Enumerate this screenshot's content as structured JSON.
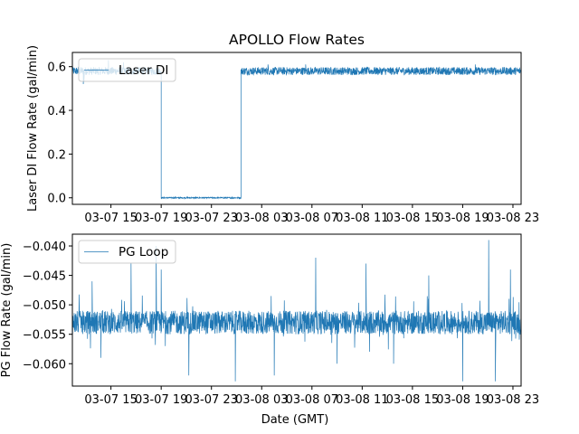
{
  "chart_data": [
    {
      "type": "line",
      "title": "APOLLO Flow Rates",
      "xlabel": "",
      "ylabel": "Laser DI Flow Rate (gal/min)",
      "x_unit": "hours since 03-07 00:00 GMT",
      "xlim": [
        11.93,
        47.65
      ],
      "ylim": [
        -0.03,
        0.665
      ],
      "xticks": [
        {
          "v": 15,
          "label": "03-07 15"
        },
        {
          "v": 19,
          "label": "03-07 19"
        },
        {
          "v": 23,
          "label": "03-07 23"
        },
        {
          "v": 27,
          "label": "03-08 03"
        },
        {
          "v": 31,
          "label": "03-08 07"
        },
        {
          "v": 35,
          "label": "03-08 11"
        },
        {
          "v": 39,
          "label": "03-08 15"
        },
        {
          "v": 43,
          "label": "03-08 19"
        },
        {
          "v": 47,
          "label": "03-08 23"
        }
      ],
      "yticks": [
        {
          "v": 0.0,
          "label": "0.0"
        },
        {
          "v": 0.2,
          "label": "0.2"
        },
        {
          "v": 0.4,
          "label": "0.4"
        },
        {
          "v": 0.6,
          "label": "0.6"
        }
      ],
      "legend": {
        "label": "Laser DI",
        "placement": "upper-left"
      },
      "series": [
        {
          "name": "Laser DI",
          "color": "#1f77b4",
          "segments": [
            {
              "start": 11.93,
              "end": 19.0,
              "mean": 0.58,
              "noise": 0.018
            },
            {
              "start": 19.0,
              "end": 25.35,
              "mean": 0.0,
              "noise": 0.003
            },
            {
              "start": 25.35,
              "end": 47.65,
              "mean": 0.58,
              "noise": 0.018
            }
          ],
          "spikes": [
            [
              12.8,
              0.52
            ],
            [
              12.85,
              0.53
            ],
            [
              14.8,
              0.63
            ],
            [
              16.0,
              0.62
            ],
            [
              30.5,
              0.61
            ],
            [
              27.5,
              0.61
            ],
            [
              44.0,
              0.61
            ]
          ]
        }
      ]
    },
    {
      "type": "line",
      "title": "",
      "xlabel": "Date (GMT)",
      "ylabel": "PG Flow Rate (gal/min)",
      "x_unit": "hours since 03-07 00:00 GMT",
      "xlim": [
        11.93,
        47.65
      ],
      "ylim": [
        -0.0638,
        -0.038
      ],
      "xticks": [
        {
          "v": 15,
          "label": "03-07 15"
        },
        {
          "v": 19,
          "label": "03-07 19"
        },
        {
          "v": 23,
          "label": "03-07 23"
        },
        {
          "v": 27,
          "label": "03-08 03"
        },
        {
          "v": 31,
          "label": "03-08 07"
        },
        {
          "v": 35,
          "label": "03-08 11"
        },
        {
          "v": 39,
          "label": "03-08 15"
        },
        {
          "v": 43,
          "label": "03-08 19"
        },
        {
          "v": 47,
          "label": "03-08 23"
        }
      ],
      "yticks": [
        {
          "v": -0.06,
          "label": "−0.060"
        },
        {
          "v": -0.055,
          "label": "−0.055"
        },
        {
          "v": -0.05,
          "label": "−0.050"
        },
        {
          "v": -0.045,
          "label": "−0.045"
        },
        {
          "v": -0.04,
          "label": "−0.040"
        }
      ],
      "legend": {
        "label": "PG Loop",
        "placement": "upper-left"
      },
      "series": [
        {
          "name": "PG Loop",
          "color": "#1f77b4",
          "segments": [
            {
              "start": 11.93,
              "end": 47.65,
              "mean": -0.053,
              "noise": 0.002
            }
          ],
          "spikes": [
            [
              16.6,
              -0.043
            ],
            [
              18.6,
              -0.04
            ],
            [
              19.0,
              -0.044
            ],
            [
              21.2,
              -0.062
            ],
            [
              24.9,
              -0.063
            ],
            [
              28.0,
              -0.062
            ],
            [
              31.3,
              -0.042
            ],
            [
              35.3,
              -0.043
            ],
            [
              43.0,
              -0.063
            ],
            [
              45.07,
              -0.039
            ],
            [
              45.6,
              -0.063
            ],
            [
              13.5,
              -0.046
            ],
            [
              14.2,
              -0.059
            ],
            [
              40.3,
              -0.045
            ],
            [
              46.8,
              -0.044
            ],
            [
              33.0,
              -0.06
            ],
            [
              37.5,
              -0.06
            ]
          ]
        }
      ]
    }
  ]
}
